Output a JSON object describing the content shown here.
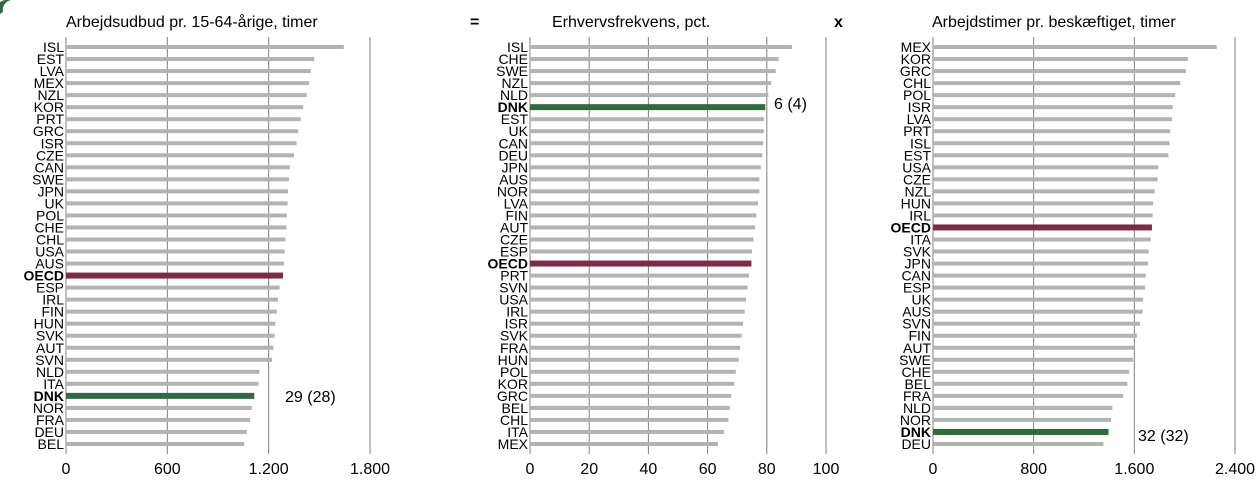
{
  "operators": {
    "equals": "=",
    "times": "x"
  },
  "colors": {
    "default": "#b3b3b3",
    "oecd": "#7d2a45",
    "dnk": "#2e6b3e",
    "gridline": "#7f7f7f",
    "logo": "#2e6b3e"
  },
  "chart_data": [
    {
      "type": "bar",
      "orientation": "horizontal",
      "title": "Arbejdsudbud pr. 15-64-årige, timer",
      "xlim": [
        0,
        1800
      ],
      "xticks": [
        "0",
        "600",
        "1.200",
        "1.800"
      ],
      "grid": true,
      "annotation": "29 (28)",
      "categories": [
        "ISL",
        "EST",
        "LVA",
        "MEX",
        "NZL",
        "KOR",
        "PRT",
        "GRC",
        "ISR",
        "CZE",
        "CAN",
        "SWE",
        "JPN",
        "UK",
        "POL",
        "CHE",
        "CHL",
        "USA",
        "AUS",
        "OECD",
        "ESP",
        "IRL",
        "FIN",
        "HUN",
        "SVK",
        "AUT",
        "SVN",
        "NLD",
        "ITA",
        "DNK",
        "NOR",
        "FRA",
        "DEU",
        "BEL"
      ],
      "values": [
        1645,
        1470,
        1450,
        1440,
        1425,
        1405,
        1390,
        1375,
        1365,
        1350,
        1325,
        1320,
        1315,
        1312,
        1308,
        1305,
        1300,
        1295,
        1290,
        1285,
        1265,
        1255,
        1248,
        1240,
        1235,
        1228,
        1220,
        1145,
        1140,
        1115,
        1100,
        1090,
        1070,
        1055
      ]
    },
    {
      "type": "bar",
      "orientation": "horizontal",
      "title": "Erhvervsfrekvens, pct.",
      "xlim": [
        0,
        100
      ],
      "xticks": [
        "0",
        "20",
        "40",
        "60",
        "80",
        "100"
      ],
      "grid": true,
      "annotation": "6 (4)",
      "categories": [
        "ISL",
        "CHE",
        "SWE",
        "NZL",
        "NLD",
        "DNK",
        "EST",
        "UK",
        "CAN",
        "DEU",
        "JPN",
        "AUS",
        "NOR",
        "LVA",
        "FIN",
        "AUT",
        "CZE",
        "ESP",
        "OECD",
        "PRT",
        "SVN",
        "USA",
        "IRL",
        "ISR",
        "SVK",
        "FRA",
        "HUN",
        "POL",
        "KOR",
        "GRC",
        "BEL",
        "CHL",
        "ITA",
        "MEX"
      ],
      "values": [
        88.5,
        84,
        83,
        81.5,
        80.5,
        79.5,
        79,
        79,
        78.8,
        78.5,
        78,
        77.5,
        77.5,
        77,
        76.5,
        76,
        75.5,
        75,
        74.8,
        74,
        73.5,
        73,
        72.5,
        72,
        71.5,
        71,
        70.5,
        69.5,
        69,
        68,
        67.5,
        67,
        65.5,
        63.5
      ]
    },
    {
      "type": "bar",
      "orientation": "horizontal",
      "title": "Arbejdstimer pr. beskæftiget, timer",
      "xlim": [
        0,
        2400
      ],
      "xticks": [
        "0",
        "800",
        "1.600",
        "2.400"
      ],
      "grid": true,
      "annotation": "32 (32)",
      "categories": [
        "MEX",
        "KOR",
        "GRC",
        "CHL",
        "POL",
        "ISR",
        "LVA",
        "PRT",
        "ISL",
        "EST",
        "USA",
        "CZE",
        "NZL",
        "HUN",
        "IRL",
        "OECD",
        "ITA",
        "SVK",
        "JPN",
        "CAN",
        "ESP",
        "UK",
        "AUS",
        "SVN",
        "FIN",
        "AUT",
        "SWE",
        "CHE",
        "BEL",
        "FRA",
        "NLD",
        "NOR",
        "DNK",
        "DEU"
      ],
      "values": [
        2255,
        2025,
        2010,
        1965,
        1925,
        1905,
        1900,
        1885,
        1880,
        1870,
        1790,
        1785,
        1760,
        1750,
        1745,
        1740,
        1730,
        1715,
        1710,
        1690,
        1685,
        1670,
        1665,
        1645,
        1620,
        1600,
        1590,
        1560,
        1545,
        1510,
        1425,
        1415,
        1395,
        1355
      ]
    }
  ]
}
